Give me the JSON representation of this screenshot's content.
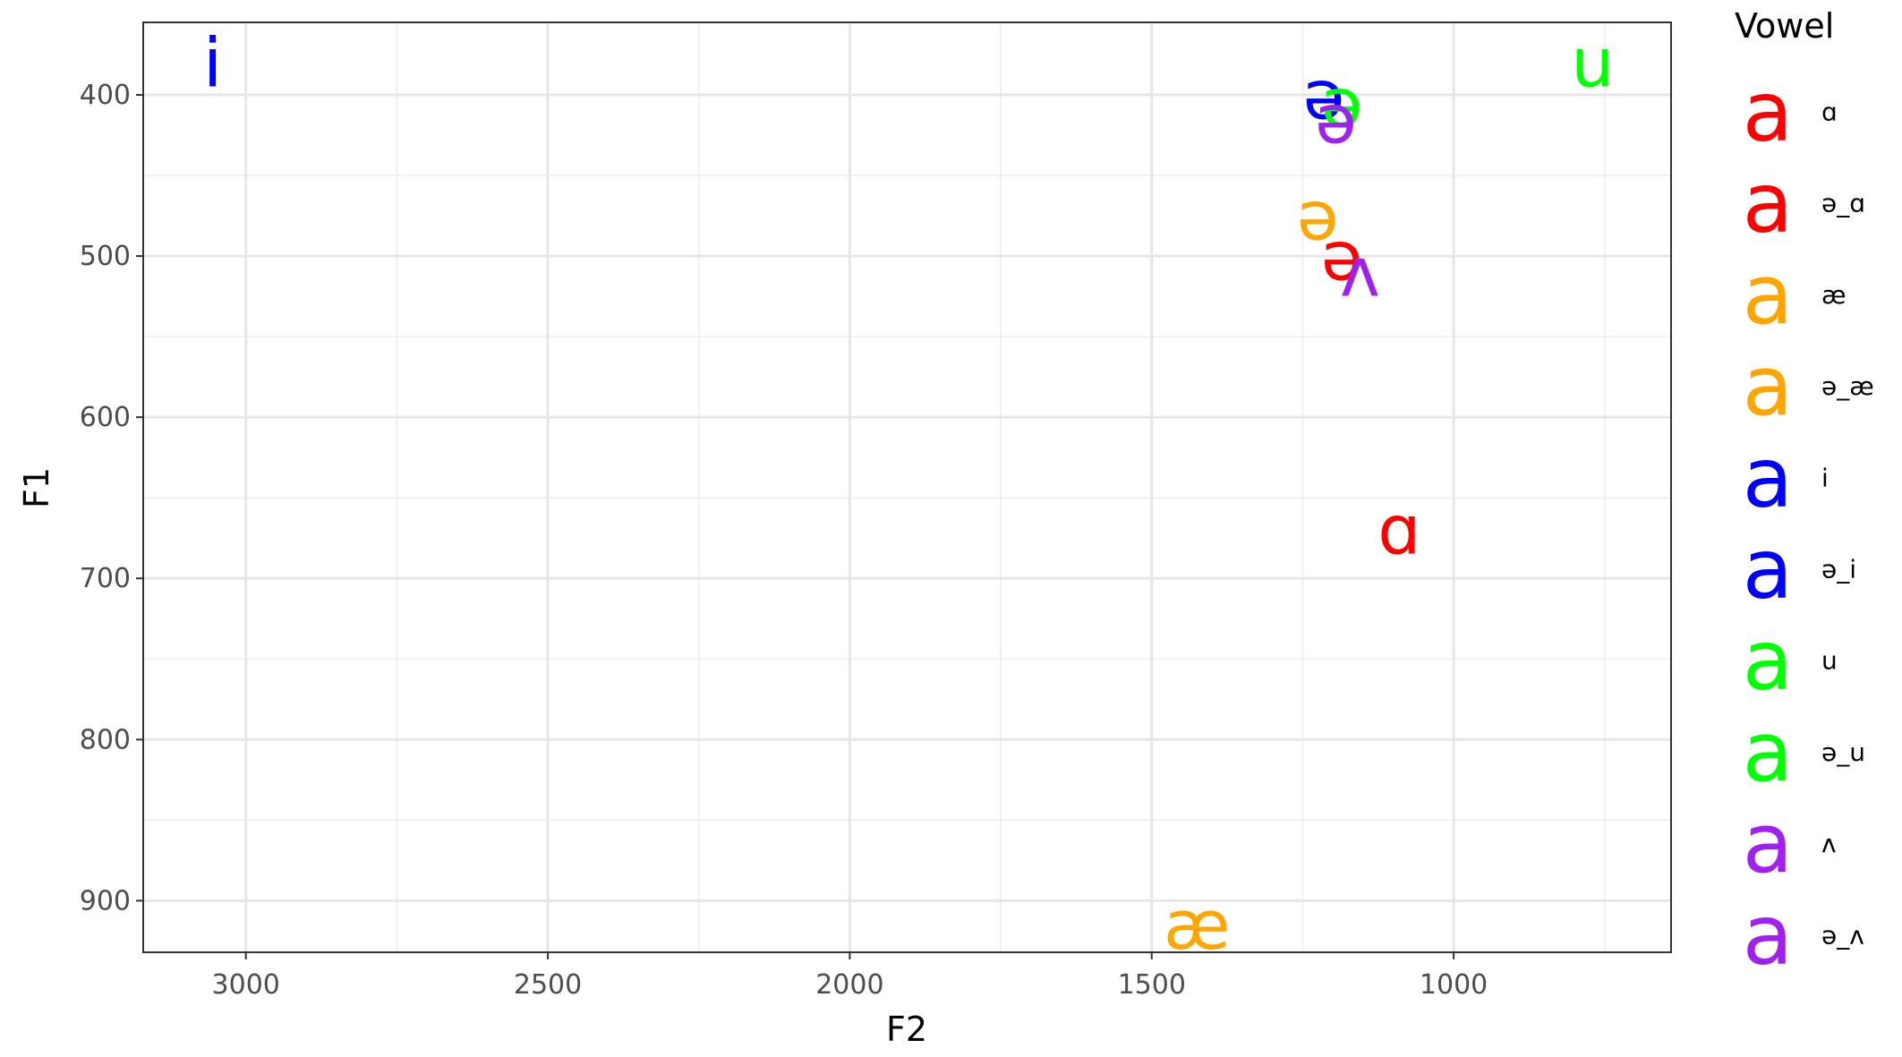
{
  "chart_data": {
    "type": "scatter",
    "title": "",
    "xlabel": "F2",
    "ylabel": "F1",
    "xlim": [
      3170,
      640
    ],
    "ylim": [
      355,
      932
    ],
    "x_reversed": true,
    "y_reversed": true,
    "x_ticks": [
      3000,
      2500,
      2000,
      1500,
      1000
    ],
    "y_ticks": [
      400,
      500,
      600,
      700,
      800,
      900
    ],
    "grid": true,
    "legend": {
      "title": "Vowel",
      "placement": "right",
      "key_glyph": "a",
      "entries": [
        {
          "label": "ɑ",
          "color": "#ff0000"
        },
        {
          "label": "ə_ɑ",
          "color": "#ff0000"
        },
        {
          "label": "æ",
          "color": "#ffa500"
        },
        {
          "label": "ə_æ",
          "color": "#ffa500"
        },
        {
          "label": "i",
          "color": "#0000ff"
        },
        {
          "label": "ə_i",
          "color": "#0000ff"
        },
        {
          "label": "u",
          "color": "#00ff00"
        },
        {
          "label": "ə_u",
          "color": "#00ff00"
        },
        {
          "label": "ʌ",
          "color": "#a020f0"
        },
        {
          "label": "ə_ʌ",
          "color": "#a020f0"
        }
      ]
    },
    "points": [
      {
        "vowel": "i",
        "label": "i",
        "F2": 3055,
        "F1": 380,
        "color": "#0000ff"
      },
      {
        "vowel": "u",
        "label": "u",
        "F2": 770,
        "F1": 380,
        "color": "#00ff00"
      },
      {
        "vowel": "ə_i",
        "label": "ə",
        "F2": 1215,
        "F1": 400,
        "color": "#0000ff"
      },
      {
        "vowel": "ə_u",
        "label": "ə",
        "F2": 1185,
        "F1": 405,
        "color": "#00ff00"
      },
      {
        "vowel": "ə_ʌ",
        "label": "ə",
        "F2": 1195,
        "F1": 415,
        "color": "#a020f0"
      },
      {
        "vowel": "ə_æ",
        "label": "ə",
        "F2": 1225,
        "F1": 475,
        "color": "#ffa500"
      },
      {
        "vowel": "ə_ɑ",
        "label": "ə",
        "F2": 1185,
        "F1": 500,
        "color": "#ff0000"
      },
      {
        "vowel": "ʌ",
        "label": "ʌ",
        "F2": 1155,
        "F1": 510,
        "color": "#a020f0"
      },
      {
        "vowel": "ɑ",
        "label": "ɑ",
        "F2": 1090,
        "F1": 670,
        "color": "#ff0000"
      },
      {
        "vowel": "æ",
        "label": "æ",
        "F2": 1425,
        "F1": 915,
        "color": "#ffa500"
      }
    ]
  }
}
